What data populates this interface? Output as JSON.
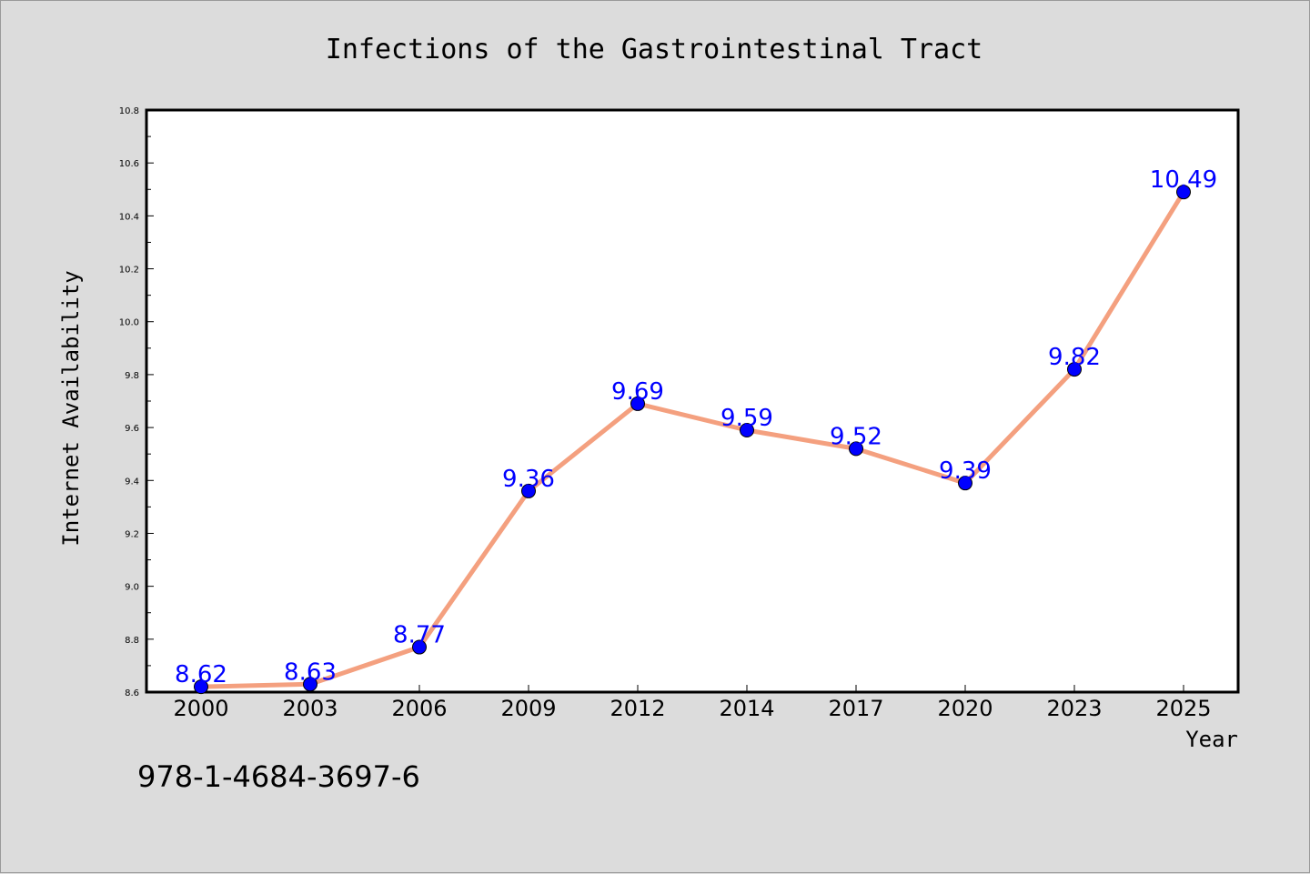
{
  "chart_data": {
    "type": "line",
    "title": "Infections of the Gastrointestinal Tract",
    "xlabel": "Year",
    "ylabel": "Internet Availability",
    "categories": [
      "2000",
      "2003",
      "2006",
      "2009",
      "2012",
      "2014",
      "2017",
      "2020",
      "2023",
      "2025"
    ],
    "series": [
      {
        "values": [
          8.62,
          8.63,
          8.77,
          9.36,
          9.69,
          9.59,
          9.52,
          9.39,
          9.82,
          10.49
        ]
      }
    ],
    "data_labels": [
      "8.62",
      "8.63",
      "8.77",
      "9.36",
      "9.69",
      "9.59",
      "9.52",
      "9.39",
      "9.82",
      "10.49"
    ],
    "ylim": [
      8.6,
      10.8
    ],
    "yticks": [
      "8.6",
      "8.8",
      "9.0",
      "9.2",
      "9.4",
      "9.6",
      "9.8",
      "10.0",
      "10.2",
      "10.4",
      "10.6",
      "10.8"
    ],
    "grid": false,
    "colors": {
      "line": "#f4a07f",
      "marker": "#0000ff",
      "label": "#0000ff"
    }
  },
  "annotation": "978-1-4684-3697-6"
}
